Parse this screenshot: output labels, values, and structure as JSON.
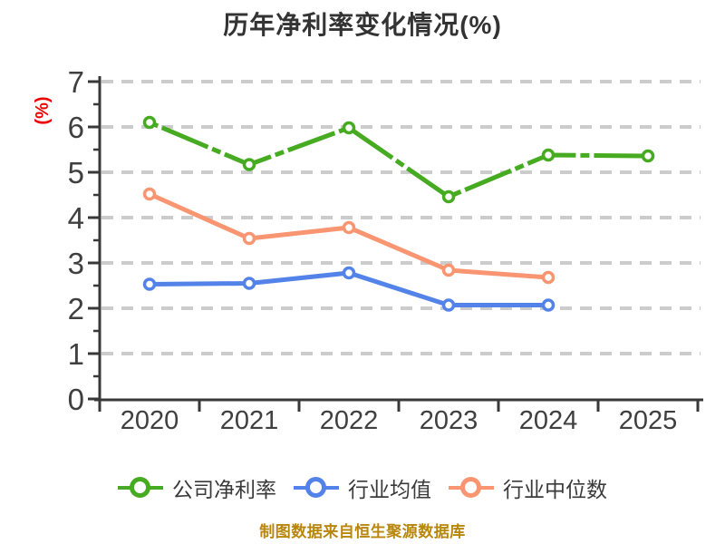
{
  "title": "历年净利率变化情况(%)",
  "y_axis_title": "(%)",
  "caption": "制图数据来自恒生聚源数据库",
  "colors": {
    "background": "#ffffff",
    "title": "#333333",
    "y_axis_title": "#ee0000",
    "caption": "#b8860b",
    "grid": "#cccccc",
    "axis": "#383838",
    "tick_label": "#3f3f3f",
    "legend_label": "#3a3a3a",
    "marker_fill": "#ffffff"
  },
  "chart_data": {
    "type": "line",
    "title": "历年净利率变化情况(%)",
    "xlabel": "",
    "ylabel": "(%)",
    "categories": [
      "2020",
      "2021",
      "2022",
      "2023",
      "2024",
      "2025"
    ],
    "series": [
      {
        "key": "company-net-margin",
        "name": "公司净利率",
        "color": "#46ab21",
        "style": "long-dashed",
        "values": [
          6.1,
          5.17,
          5.98,
          4.46,
          5.38,
          5.36
        ]
      },
      {
        "key": "industry-mean",
        "name": "行业均值",
        "color": "#5383e8",
        "style": "solid",
        "values": [
          2.53,
          2.55,
          2.78,
          2.07,
          2.07
        ]
      },
      {
        "key": "industry-median",
        "name": "行业中位数",
        "color": "#f99570",
        "style": "solid",
        "values": [
          4.52,
          3.54,
          3.78,
          2.84,
          2.68
        ]
      }
    ],
    "ylim": [
      0,
      7
    ],
    "yticks": [
      0,
      1,
      2,
      3,
      4,
      5,
      6,
      7
    ],
    "grid": "horizontal-dashed",
    "legend_position": "bottom",
    "marker": "circle-white-filled"
  }
}
